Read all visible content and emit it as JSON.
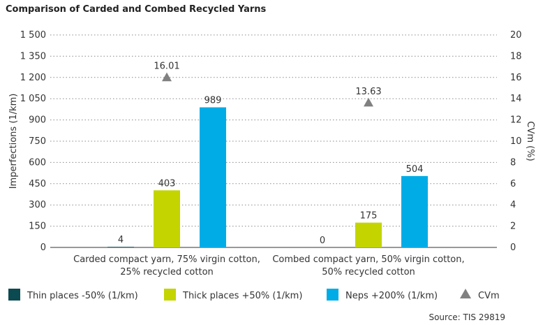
{
  "chart_data": {
    "type": "bar",
    "title": "Comparison of Carded and Combed Recycled Yarns",
    "categories": [
      [
        "Carded compact yarn, 75% virgin cotton,",
        "25% recycled cotton"
      ],
      [
        "Combed compact yarn, 50% virgin cotton,",
        "50% recycled cotton"
      ]
    ],
    "series": [
      {
        "name": "Thin places -50% (1/km)",
        "color": "#0c4a52",
        "values": [
          4,
          0
        ],
        "labels": [
          "4",
          "0"
        ],
        "axis": "left"
      },
      {
        "name": "Thick places +50% (1/km)",
        "color": "#c3d400",
        "values": [
          403,
          175
        ],
        "labels": [
          "403",
          "175"
        ],
        "axis": "left"
      },
      {
        "name": "Neps +200% (1/km)",
        "color": "#00ace6",
        "values": [
          989,
          504
        ],
        "labels": [
          "989",
          "504"
        ],
        "axis": "left"
      }
    ],
    "marker_series": {
      "name": "CVm",
      "color": "#808080",
      "marker": "triangle",
      "values": [
        16.01,
        13.63
      ],
      "labels": [
        "16.01",
        "13.63"
      ],
      "axis": "right"
    },
    "ylabel": "Imperfections (1/km)",
    "ylabel_right": "CVm (%)",
    "ylim": [
      0,
      1500
    ],
    "ylim_right": [
      0,
      20
    ],
    "yticks": [
      0,
      150,
      300,
      450,
      600,
      750,
      900,
      1050,
      1200,
      1350,
      1500
    ],
    "ytick_labels": [
      "0",
      "150",
      "300",
      "450",
      "600",
      "750",
      "900",
      "1 050",
      "1 200",
      "1 350",
      "1 500"
    ],
    "yticks_right": [
      0,
      2,
      4,
      6,
      8,
      10,
      12,
      14,
      16,
      18,
      20
    ],
    "grid": true,
    "legend_position": "bottom",
    "source": "Source: TIS 29819"
  }
}
